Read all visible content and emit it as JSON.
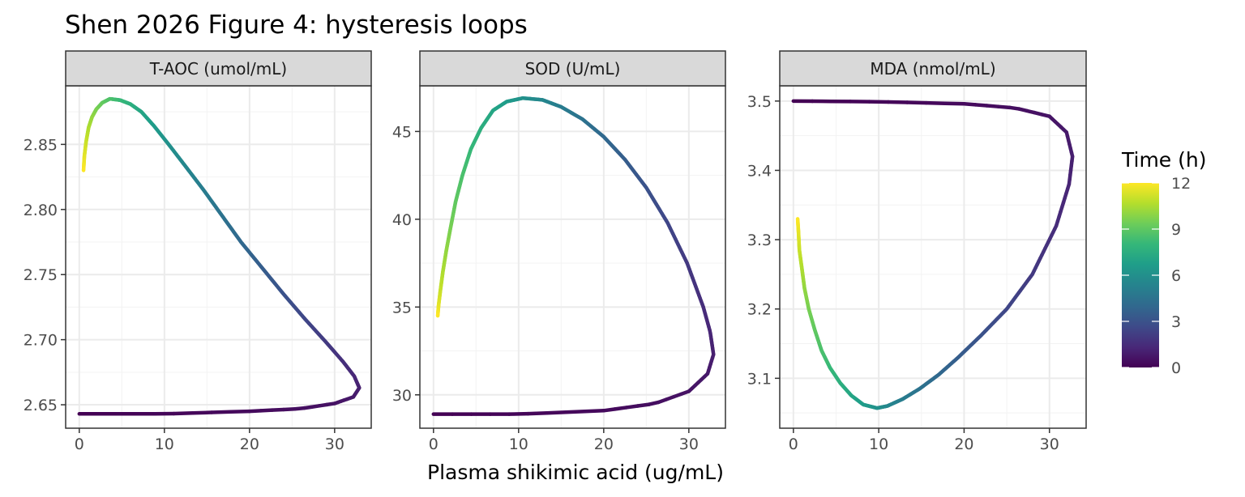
{
  "title": "Shen 2026 Figure 4: hysteresis loops",
  "colors": {
    "viridis": [
      "#440154",
      "#482878",
      "#3e4a89",
      "#31688e",
      "#26828e",
      "#1f9e89",
      "#35b779",
      "#6dcd59",
      "#b4de2c",
      "#fde725"
    ],
    "strip_fill": "#d9d9d9",
    "grid_major": "#ebebeb",
    "panel_border": "#333333"
  },
  "chart_data": {
    "type": "line",
    "xlabel": "Plasma shikimic acid (ug/mL)",
    "x_ticks": [
      0,
      10,
      20,
      30
    ],
    "xlim": [
      -1.6,
      34.3
    ],
    "color_scale": {
      "title": "Time (h)",
      "ticks": [
        0,
        3,
        6,
        9,
        12
      ],
      "limits": [
        0,
        12
      ]
    },
    "panels": [
      {
        "strip": "T-AOC (umol/mL)",
        "ylim": [
          2.632,
          2.895
        ],
        "y_ticks": [
          2.65,
          2.7,
          2.75,
          2.8,
          2.85
        ],
        "y_tick_labels": [
          "2.65",
          "2.70",
          "2.75",
          "2.80",
          "2.85"
        ],
        "points": [
          {
            "t": 0.0,
            "x": 0.0,
            "y": 2.643
          },
          {
            "t": 0.15,
            "x": 10.0,
            "y": 2.643
          },
          {
            "t": 0.3,
            "x": 20.0,
            "y": 2.645
          },
          {
            "t": 0.45,
            "x": 26.0,
            "y": 2.647
          },
          {
            "t": 0.6,
            "x": 30.0,
            "y": 2.651
          },
          {
            "t": 0.8,
            "x": 32.2,
            "y": 2.656
          },
          {
            "t": 1.0,
            "x": 32.9,
            "y": 2.663
          },
          {
            "t": 1.3,
            "x": 32.3,
            "y": 2.672
          },
          {
            "t": 1.6,
            "x": 31.0,
            "y": 2.683
          },
          {
            "t": 2.0,
            "x": 29.0,
            "y": 2.698
          },
          {
            "t": 2.5,
            "x": 26.5,
            "y": 2.716
          },
          {
            "t": 3.0,
            "x": 24.0,
            "y": 2.735
          },
          {
            "t": 3.5,
            "x": 21.5,
            "y": 2.755
          },
          {
            "t": 4.0,
            "x": 19.0,
            "y": 2.775
          },
          {
            "t": 4.5,
            "x": 16.8,
            "y": 2.795
          },
          {
            "t": 5.0,
            "x": 14.6,
            "y": 2.815
          },
          {
            "t": 5.5,
            "x": 12.5,
            "y": 2.833
          },
          {
            "t": 6.0,
            "x": 10.5,
            "y": 2.85
          },
          {
            "t": 6.5,
            "x": 8.8,
            "y": 2.864
          },
          {
            "t": 7.0,
            "x": 7.3,
            "y": 2.875
          },
          {
            "t": 7.5,
            "x": 6.0,
            "y": 2.881
          },
          {
            "t": 8.0,
            "x": 4.8,
            "y": 2.884
          },
          {
            "t": 8.5,
            "x": 3.6,
            "y": 2.885
          },
          {
            "t": 9.0,
            "x": 2.7,
            "y": 2.882
          },
          {
            "t": 9.5,
            "x": 2.0,
            "y": 2.877
          },
          {
            "t": 10.0,
            "x": 1.5,
            "y": 2.871
          },
          {
            "t": 10.5,
            "x": 1.1,
            "y": 2.863
          },
          {
            "t": 11.0,
            "x": 0.8,
            "y": 2.852
          },
          {
            "t": 11.5,
            "x": 0.6,
            "y": 2.841
          },
          {
            "t": 12.0,
            "x": 0.5,
            "y": 2.83
          }
        ]
      },
      {
        "strip": "SOD (U/mL)",
        "ylim": [
          28.1,
          47.6
        ],
        "y_ticks": [
          30,
          35,
          40,
          45
        ],
        "y_tick_labels": [
          "30",
          "35",
          "40",
          "45"
        ],
        "points": [
          {
            "t": 0.0,
            "x": 0.0,
            "y": 28.9
          },
          {
            "t": 0.15,
            "x": 10.0,
            "y": 28.9
          },
          {
            "t": 0.3,
            "x": 20.0,
            "y": 29.1
          },
          {
            "t": 0.45,
            "x": 26.0,
            "y": 29.5
          },
          {
            "t": 0.6,
            "x": 30.0,
            "y": 30.2
          },
          {
            "t": 0.8,
            "x": 32.2,
            "y": 31.2
          },
          {
            "t": 1.0,
            "x": 32.9,
            "y": 32.3
          },
          {
            "t": 1.25,
            "x": 32.5,
            "y": 33.6
          },
          {
            "t": 1.5,
            "x": 31.7,
            "y": 35.0
          },
          {
            "t": 2.0,
            "x": 29.8,
            "y": 37.5
          },
          {
            "t": 2.5,
            "x": 27.5,
            "y": 39.8
          },
          {
            "t": 3.0,
            "x": 25.0,
            "y": 41.8
          },
          {
            "t": 3.5,
            "x": 22.5,
            "y": 43.4
          },
          {
            "t": 4.0,
            "x": 20.0,
            "y": 44.7
          },
          {
            "t": 4.5,
            "x": 17.5,
            "y": 45.7
          },
          {
            "t": 5.0,
            "x": 15.0,
            "y": 46.4
          },
          {
            "t": 5.5,
            "x": 12.8,
            "y": 46.8
          },
          {
            "t": 6.0,
            "x": 10.5,
            "y": 46.9
          },
          {
            "t": 6.5,
            "x": 8.6,
            "y": 46.7
          },
          {
            "t": 7.0,
            "x": 7.0,
            "y": 46.2
          },
          {
            "t": 7.5,
            "x": 5.6,
            "y": 45.2
          },
          {
            "t": 8.0,
            "x": 4.4,
            "y": 44.0
          },
          {
            "t": 8.5,
            "x": 3.4,
            "y": 42.5
          },
          {
            "t": 9.0,
            "x": 2.6,
            "y": 41.0
          },
          {
            "t": 9.5,
            "x": 2.0,
            "y": 39.5
          },
          {
            "t": 10.0,
            "x": 1.5,
            "y": 38.2
          },
          {
            "t": 10.5,
            "x": 1.1,
            "y": 37.0
          },
          {
            "t": 11.0,
            "x": 0.8,
            "y": 35.9
          },
          {
            "t": 11.5,
            "x": 0.6,
            "y": 35.1
          },
          {
            "t": 12.0,
            "x": 0.5,
            "y": 34.5
          }
        ]
      },
      {
        "strip": "MDA (nmol/mL)",
        "ylim": [
          3.028,
          3.522
        ],
        "y_ticks": [
          3.1,
          3.2,
          3.3,
          3.4,
          3.5
        ],
        "y_tick_labels": [
          "3.1",
          "3.2",
          "3.3",
          "3.4",
          "3.5"
        ],
        "points": [
          {
            "t": 0.0,
            "x": 0.0,
            "y": 3.5
          },
          {
            "t": 0.15,
            "x": 10.0,
            "y": 3.499
          },
          {
            "t": 0.3,
            "x": 20.0,
            "y": 3.496
          },
          {
            "t": 0.45,
            "x": 26.0,
            "y": 3.49
          },
          {
            "t": 0.6,
            "x": 30.0,
            "y": 3.478
          },
          {
            "t": 0.8,
            "x": 32.0,
            "y": 3.455
          },
          {
            "t": 1.0,
            "x": 32.7,
            "y": 3.42
          },
          {
            "t": 1.2,
            "x": 32.3,
            "y": 3.38
          },
          {
            "t": 1.5,
            "x": 30.8,
            "y": 3.32
          },
          {
            "t": 2.0,
            "x": 28.0,
            "y": 3.25
          },
          {
            "t": 2.5,
            "x": 25.0,
            "y": 3.2
          },
          {
            "t": 3.0,
            "x": 22.0,
            "y": 3.162
          },
          {
            "t": 3.5,
            "x": 19.3,
            "y": 3.13
          },
          {
            "t": 4.0,
            "x": 17.0,
            "y": 3.105
          },
          {
            "t": 4.5,
            "x": 14.8,
            "y": 3.085
          },
          {
            "t": 5.0,
            "x": 12.8,
            "y": 3.07
          },
          {
            "t": 5.5,
            "x": 11.0,
            "y": 3.06
          },
          {
            "t": 6.0,
            "x": 9.8,
            "y": 3.057
          },
          {
            "t": 6.5,
            "x": 8.2,
            "y": 3.062
          },
          {
            "t": 7.0,
            "x": 6.8,
            "y": 3.075
          },
          {
            "t": 7.5,
            "x": 5.5,
            "y": 3.093
          },
          {
            "t": 8.0,
            "x": 4.3,
            "y": 3.115
          },
          {
            "t": 8.5,
            "x": 3.3,
            "y": 3.14
          },
          {
            "t": 9.0,
            "x": 2.5,
            "y": 3.17
          },
          {
            "t": 9.5,
            "x": 1.8,
            "y": 3.2
          },
          {
            "t": 10.0,
            "x": 1.3,
            "y": 3.23
          },
          {
            "t": 10.5,
            "x": 1.0,
            "y": 3.258
          },
          {
            "t": 11.0,
            "x": 0.7,
            "y": 3.285
          },
          {
            "t": 11.5,
            "x": 0.6,
            "y": 3.31
          },
          {
            "t": 12.0,
            "x": 0.5,
            "y": 3.33
          }
        ]
      }
    ]
  }
}
